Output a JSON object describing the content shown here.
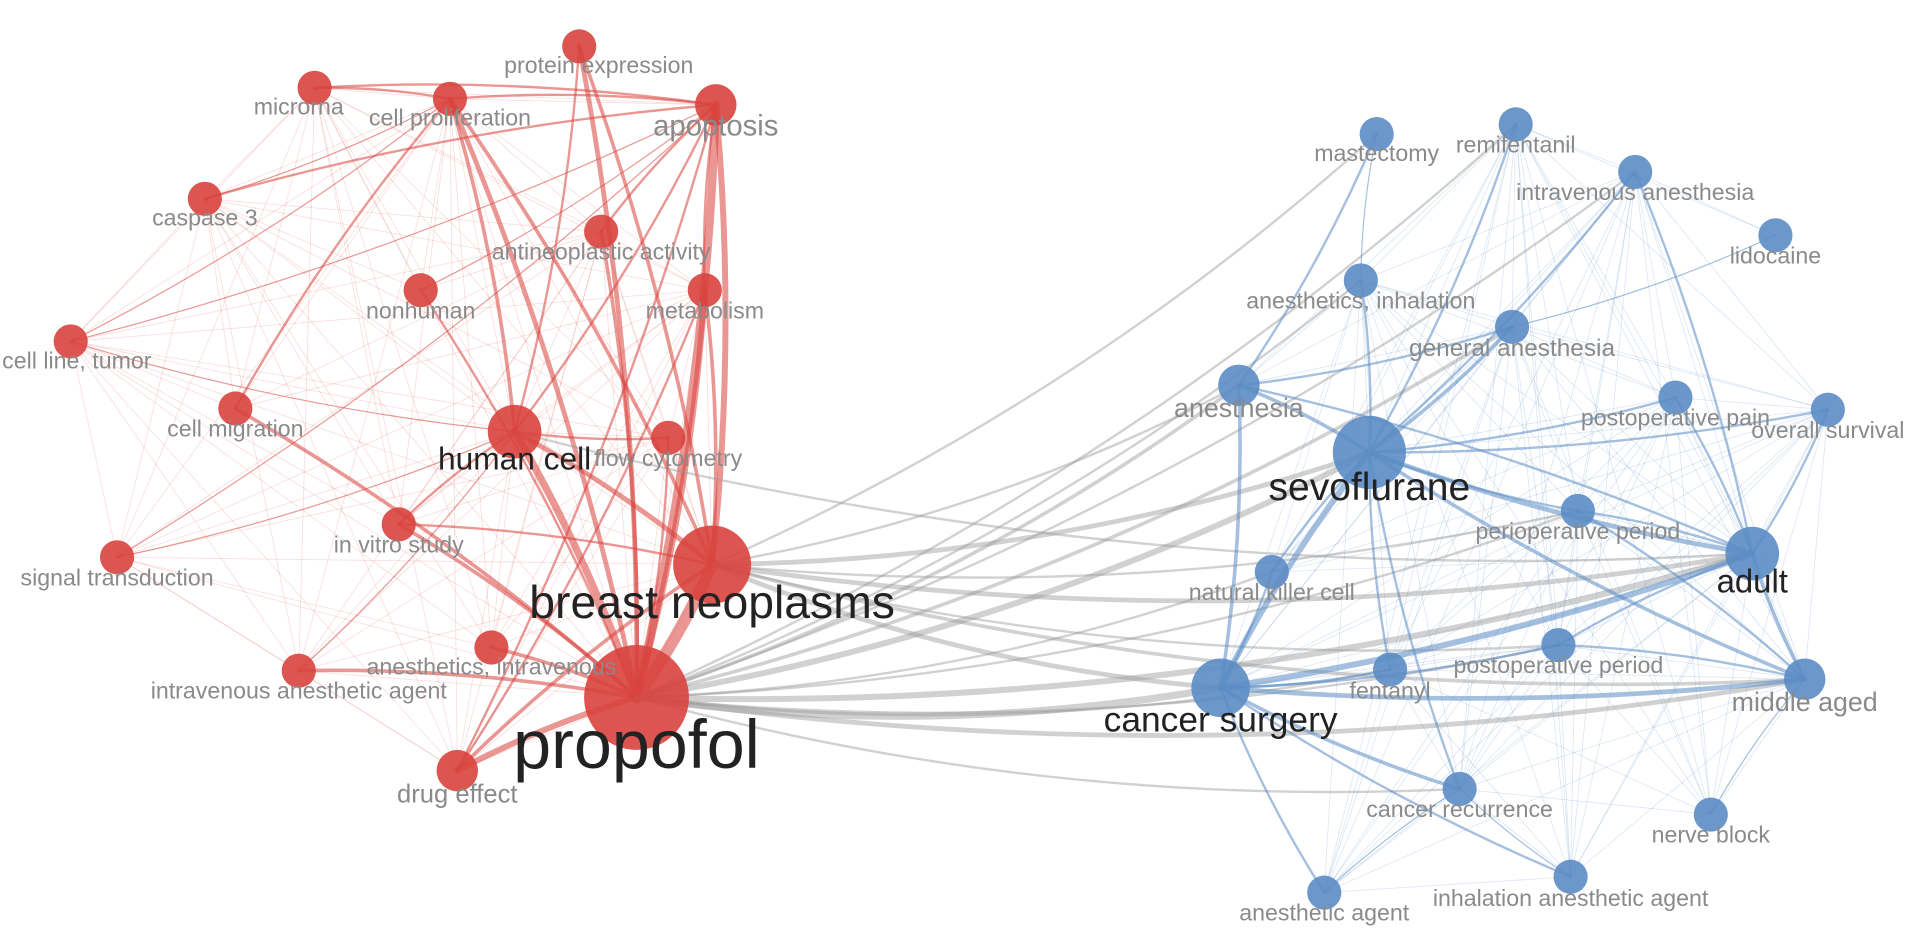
{
  "colors": {
    "red_cluster": "#d9423d",
    "blue_cluster": "#5b8cc4",
    "cross_edge": "#9a9a9a",
    "label_dark": "#222222",
    "label_light": "#8a8a8a"
  },
  "nodes": [
    {
      "id": "protein_expression",
      "label": "protein expression",
      "cluster": "red",
      "weight": 2
    },
    {
      "id": "microrna",
      "label": "microrna",
      "cluster": "red",
      "weight": 2
    },
    {
      "id": "cell_proliferation",
      "label": "cell proliferation",
      "cluster": "red",
      "weight": 2
    },
    {
      "id": "apoptosis",
      "label": "apoptosis",
      "cluster": "red",
      "weight": 3
    },
    {
      "id": "caspase_3",
      "label": "caspase 3",
      "cluster": "red",
      "weight": 2
    },
    {
      "id": "antineoplastic_activity",
      "label": "antineoplastic activity",
      "cluster": "red",
      "weight": 2
    },
    {
      "id": "nonhuman",
      "label": "nonhuman",
      "cluster": "red",
      "weight": 2
    },
    {
      "id": "metabolism",
      "label": "metabolism",
      "cluster": "red",
      "weight": 2
    },
    {
      "id": "cell_line_tumor",
      "label": "cell line, tumor",
      "cluster": "red",
      "weight": 2
    },
    {
      "id": "cell_migration",
      "label": "cell migration",
      "cluster": "red",
      "weight": 2
    },
    {
      "id": "human_cell",
      "label": "human cell",
      "cluster": "red",
      "weight": 4
    },
    {
      "id": "flow_cytometry",
      "label": "flow cytometry",
      "cluster": "red",
      "weight": 2
    },
    {
      "id": "in_vitro_study",
      "label": "in vitro study",
      "cluster": "red",
      "weight": 2
    },
    {
      "id": "signal_transduction",
      "label": "signal transduction",
      "cluster": "red",
      "weight": 2
    },
    {
      "id": "breast_neoplasms",
      "label": "breast neoplasms",
      "cluster": "red",
      "weight": 7
    },
    {
      "id": "anesthetics_intravenous",
      "label": "anesthetics, intravenous",
      "cluster": "red",
      "weight": 2
    },
    {
      "id": "intravenous_anesthetic_agent",
      "label": "intravenous anesthetic agent",
      "cluster": "red",
      "weight": 2
    },
    {
      "id": "propofol",
      "label": "propofol",
      "cluster": "red",
      "weight": 10
    },
    {
      "id": "drug_effect",
      "label": "drug effect",
      "cluster": "red",
      "weight": 3
    },
    {
      "id": "mastectomy",
      "label": "mastectomy",
      "cluster": "blue",
      "weight": 2
    },
    {
      "id": "remifentanil",
      "label": "remifentanil",
      "cluster": "blue",
      "weight": 2
    },
    {
      "id": "intravenous_anesthesia",
      "label": "intravenous anesthesia",
      "cluster": "blue",
      "weight": 2
    },
    {
      "id": "lidocaine",
      "label": "lidocaine",
      "cluster": "blue",
      "weight": 2
    },
    {
      "id": "anesthetics_inhalation",
      "label": "anesthetics, inhalation",
      "cluster": "blue",
      "weight": 2
    },
    {
      "id": "general_anesthesia",
      "label": "general anesthesia",
      "cluster": "blue",
      "weight": 2
    },
    {
      "id": "anesthesia",
      "label": "anesthesia",
      "cluster": "blue",
      "weight": 3
    },
    {
      "id": "postoperative_pain",
      "label": "postoperative pain",
      "cluster": "blue",
      "weight": 2
    },
    {
      "id": "overall_survival",
      "label": "overall survival",
      "cluster": "blue",
      "weight": 2
    },
    {
      "id": "sevoflurane",
      "label": "sevoflurane",
      "cluster": "blue",
      "weight": 6
    },
    {
      "id": "perioperative_period",
      "label": "perioperative period",
      "cluster": "blue",
      "weight": 2
    },
    {
      "id": "adult",
      "label": "adult",
      "cluster": "blue",
      "weight": 4
    },
    {
      "id": "natural_killer_cell",
      "label": "natural killer cell",
      "cluster": "blue",
      "weight": 2
    },
    {
      "id": "postoperative_period",
      "label": "postoperative period",
      "cluster": "blue",
      "weight": 2
    },
    {
      "id": "fentanyl",
      "label": "fentanyl",
      "cluster": "blue",
      "weight": 2
    },
    {
      "id": "cancer_surgery",
      "label": "cancer surgery",
      "cluster": "blue",
      "weight": 5
    },
    {
      "id": "middle_aged",
      "label": "middle aged",
      "cluster": "blue",
      "weight": 3
    },
    {
      "id": "cancer_recurrence",
      "label": "cancer recurrence",
      "cluster": "blue",
      "weight": 2
    },
    {
      "id": "nerve_block",
      "label": "nerve block",
      "cluster": "blue",
      "weight": 2
    },
    {
      "id": "anesthetic_agent",
      "label": "anesthetic agent",
      "cluster": "blue",
      "weight": 2
    },
    {
      "id": "inhalation_anesthetic_agent",
      "label": "inhalation anesthetic agent",
      "cluster": "blue",
      "weight": 2
    }
  ],
  "edges": [
    [
      "propofol",
      "breast_neoplasms",
      10
    ],
    [
      "propofol",
      "human_cell",
      6
    ],
    [
      "propofol",
      "apoptosis",
      7
    ],
    [
      "propofol",
      "cell_proliferation",
      4
    ],
    [
      "propofol",
      "protein_expression",
      4
    ],
    [
      "propofol",
      "metabolism",
      5
    ],
    [
      "propofol",
      "drug_effect",
      5
    ],
    [
      "propofol",
      "antineoplastic_activity",
      3
    ],
    [
      "propofol",
      "anesthetics_intravenous",
      3
    ],
    [
      "propofol",
      "intravenous_anesthetic_agent",
      3
    ],
    [
      "propofol",
      "in_vitro_study",
      3
    ],
    [
      "propofol",
      "cell_migration",
      3
    ],
    [
      "propofol",
      "flow_cytometry",
      2
    ],
    [
      "propofol",
      "nonhuman",
      2
    ],
    [
      "propofol",
      "sevoflurane",
      5
    ],
    [
      "propofol",
      "cancer_surgery",
      6
    ],
    [
      "propofol",
      "adult",
      5
    ],
    [
      "propofol",
      "middle_aged",
      4
    ],
    [
      "propofol",
      "anesthesia",
      3
    ],
    [
      "propofol",
      "general_anesthesia",
      3
    ],
    [
      "propofol",
      "postoperative_period",
      2
    ],
    [
      "propofol",
      "fentanyl",
      2
    ],
    [
      "propofol",
      "natural_killer_cell",
      2
    ],
    [
      "propofol",
      "cancer_recurrence",
      2
    ],
    [
      "propofol",
      "perioperative_period",
      2
    ],
    [
      "propofol",
      "remifentanil",
      2
    ],
    [
      "propofol",
      "intravenous_anesthesia",
      2
    ],
    [
      "propofol",
      "anesthetics_inhalation",
      2
    ],
    [
      "breast_neoplasms",
      "human_cell",
      4
    ],
    [
      "breast_neoplasms",
      "apoptosis",
      5
    ],
    [
      "breast_neoplasms",
      "metabolism",
      3
    ],
    [
      "breast_neoplasms",
      "cell_proliferation",
      3
    ],
    [
      "breast_neoplasms",
      "protein_expression",
      3
    ],
    [
      "breast_neoplasms",
      "drug_effect",
      3
    ],
    [
      "breast_neoplasms",
      "in_vitro_study",
      2
    ],
    [
      "breast_neoplasms",
      "sevoflurane",
      4
    ],
    [
      "breast_neoplasms",
      "cancer_surgery",
      4
    ],
    [
      "breast_neoplasms",
      "adult",
      4
    ],
    [
      "breast_neoplasms",
      "middle_aged",
      3
    ],
    [
      "breast_neoplasms",
      "anesthesia",
      2
    ],
    [
      "breast_neoplasms",
      "mastectomy",
      2
    ],
    [
      "breast_neoplasms",
      "perioperative_period",
      2
    ],
    [
      "breast_neoplasms",
      "postoperative_period",
      2
    ],
    [
      "human_cell",
      "apoptosis",
      2
    ],
    [
      "human_cell",
      "cell_proliferation",
      3
    ],
    [
      "human_cell",
      "protein_expression",
      2
    ],
    [
      "human_cell",
      "flow_cytometry",
      2
    ],
    [
      "human_cell",
      "in_vitro_study",
      2
    ],
    [
      "human_cell",
      "adult",
      2
    ],
    [
      "apoptosis",
      "cell_proliferation",
      2
    ],
    [
      "apoptosis",
      "microrna",
      2
    ],
    [
      "apoptosis",
      "caspase_3",
      2
    ],
    [
      "apoptosis",
      "antineoplastic_activity",
      2
    ],
    [
      "apoptosis",
      "metabolism",
      2
    ],
    [
      "cell_proliferation",
      "microrna",
      2
    ],
    [
      "cell_proliferation",
      "cell_migration",
      2
    ],
    [
      "cell_line_tumor",
      "apoptosis",
      1
    ],
    [
      "cell_line_tumor",
      "human_cell",
      1
    ],
    [
      "cell_line_tumor",
      "cell_proliferation",
      1
    ],
    [
      "signal_transduction",
      "apoptosis",
      1
    ],
    [
      "signal_transduction",
      "human_cell",
      1
    ],
    [
      "caspase_3",
      "cell_proliferation",
      1
    ],
    [
      "nonhuman",
      "apoptosis",
      1
    ],
    [
      "drug_effect",
      "apoptosis",
      2
    ],
    [
      "drug_effect",
      "metabolism",
      2
    ],
    [
      "intravenous_anesthetic_agent",
      "human_cell",
      1
    ],
    [
      "sevoflurane",
      "cancer_surgery",
      5
    ],
    [
      "sevoflurane",
      "adult",
      4
    ],
    [
      "sevoflurane",
      "middle_aged",
      3
    ],
    [
      "sevoflurane",
      "anesthesia",
      3
    ],
    [
      "sevoflurane",
      "general_anesthesia",
      3
    ],
    [
      "sevoflurane",
      "anesthetics_inhalation",
      2
    ],
    [
      "sevoflurane",
      "perioperative_period",
      2
    ],
    [
      "sevoflurane",
      "postoperative_pain",
      2
    ],
    [
      "sevoflurane",
      "remifentanil",
      2
    ],
    [
      "sevoflurane",
      "fentanyl",
      2
    ],
    [
      "sevoflurane",
      "natural_killer_cell",
      2
    ],
    [
      "sevoflurane",
      "overall_survival",
      2
    ],
    [
      "sevoflurane",
      "intravenous_anesthesia",
      2
    ],
    [
      "sevoflurane",
      "cancer_recurrence",
      2
    ],
    [
      "cancer_surgery",
      "adult",
      5
    ],
    [
      "cancer_surgery",
      "middle_aged",
      4
    ],
    [
      "cancer_surgery",
      "anesthesia",
      3
    ],
    [
      "cancer_surgery",
      "cancer_recurrence",
      3
    ],
    [
      "cancer_surgery",
      "fentanyl",
      2
    ],
    [
      "cancer_surgery",
      "postoperative_period",
      2
    ],
    [
      "cancer_surgery",
      "natural_killer_cell",
      2
    ],
    [
      "cancer_surgery",
      "anesthetic_agent",
      2
    ],
    [
      "cancer_surgery",
      "inhalation_anesthetic_agent",
      2
    ],
    [
      "adult",
      "middle_aged",
      3
    ],
    [
      "adult",
      "anesthesia",
      2
    ],
    [
      "adult",
      "postoperative_pain",
      2
    ],
    [
      "adult",
      "intravenous_anesthesia",
      2
    ],
    [
      "adult",
      "perioperative_period",
      2
    ],
    [
      "adult",
      "overall_survival",
      2
    ],
    [
      "adult",
      "postoperative_period",
      2
    ],
    [
      "middle_aged",
      "postoperative_period",
      2
    ],
    [
      "middle_aged",
      "perioperative_period",
      2
    ],
    [
      "middle_aged",
      "nerve_block",
      1
    ],
    [
      "anesthesia",
      "mastectomy",
      2
    ],
    [
      "anesthesia",
      "general_anesthesia",
      2
    ],
    [
      "general_anesthesia",
      "lidocaine",
      1
    ],
    [
      "mastectomy",
      "anesthetics_inhalation",
      1
    ],
    [
      "cancer_recurrence",
      "anesthetic_agent",
      1
    ],
    [
      "cancer_recurrence",
      "inhalation_anesthetic_agent",
      1
    ]
  ]
}
